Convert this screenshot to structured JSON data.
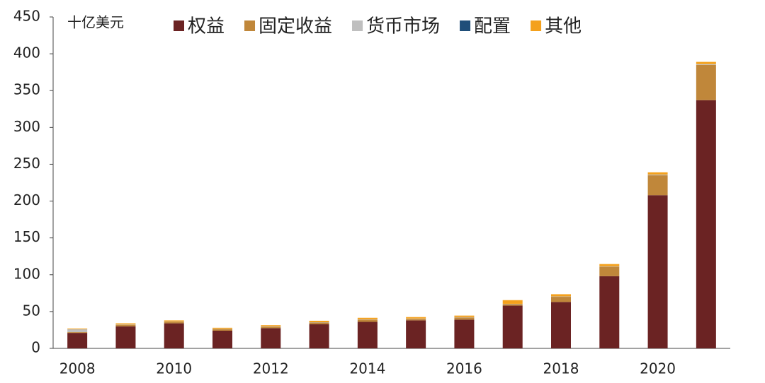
{
  "chart_data": {
    "type": "stacked_bar",
    "y_label": "十亿美元",
    "categories": [
      "2008",
      null,
      "2010",
      null,
      "2012",
      null,
      "2014",
      null,
      "2016",
      null,
      "2018",
      null,
      "2020",
      null
    ],
    "series": [
      {
        "name": "权益",
        "color": "#6b2323",
        "values": [
          21,
          30,
          34,
          24,
          27.5,
          33,
          36,
          38,
          39,
          58,
          63,
          98,
          208,
          337
        ]
      },
      {
        "name": "固定收益",
        "color": "#c0873a",
        "values": [
          1,
          2,
          2,
          2,
          2,
          2,
          3,
          2,
          3,
          2,
          7,
          13,
          27,
          48
        ]
      },
      {
        "name": "货币市场",
        "color": "#bfbfbf",
        "values": [
          4,
          0.5,
          0.5,
          0.5,
          0.5,
          0.5,
          0.5,
          0.5,
          0.5,
          0.5,
          0.5,
          0.5,
          1,
          1
        ]
      },
      {
        "name": "配置",
        "color": "#1f4e79",
        "values": [
          0,
          0,
          0,
          0,
          0,
          0,
          0,
          0,
          0,
          0,
          0,
          0,
          0,
          0
        ]
      },
      {
        "name": "其他",
        "color": "#f4a11d",
        "values": [
          1,
          1.5,
          1.5,
          1.5,
          1.5,
          2,
          2,
          2,
          2,
          5,
          3,
          3,
          3,
          3
        ]
      }
    ],
    "ylim": [
      0,
      450
    ],
    "yticks": [
      0,
      50,
      100,
      150,
      200,
      250,
      300,
      350,
      400,
      450
    ],
    "grid": false
  }
}
